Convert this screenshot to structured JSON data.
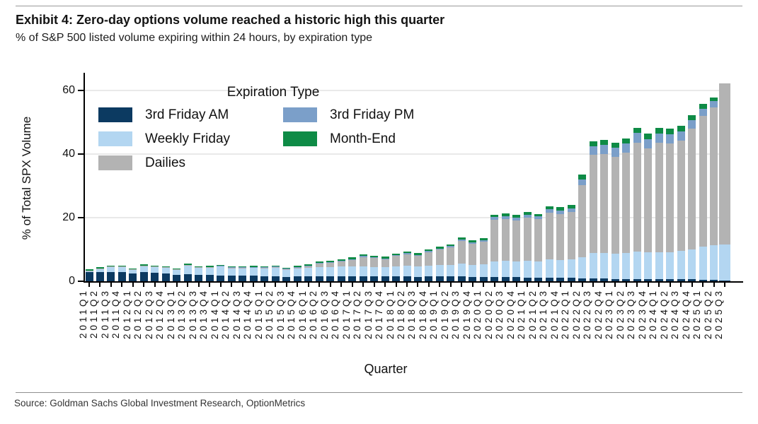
{
  "page": {
    "title": "Exhibit 4: Zero-day options volume reached a historic high this quarter",
    "subtitle": "% of S&P 500 listed volume expiring within 24 hours, by expiration type",
    "source": "Source: Goldman Sachs Global Investment Research, OptionMetrics"
  },
  "chart_data": {
    "type": "bar",
    "stacked": true,
    "title": "Exhibit 4: Zero-day options volume reached a historic high this quarter",
    "subtitle": "% of S&P 500 listed volume expiring within 24 hours, by expiration type",
    "xlabel": "Quarter",
    "ylabel": "% of Total SPX Volume",
    "legend_title": "Expiration Type",
    "legend_position": "upper-left-inside",
    "grid": "horizontal",
    "ylim": [
      0,
      65
    ],
    "yticks": [
      0,
      20,
      40,
      60
    ],
    "categories": [
      "2011Q1",
      "2011Q2",
      "2011Q3",
      "2011Q4",
      "2012Q1",
      "2012Q2",
      "2012Q3",
      "2012Q4",
      "2013Q1",
      "2013Q2",
      "2013Q3",
      "2013Q4",
      "2014Q1",
      "2014Q2",
      "2014Q3",
      "2014Q4",
      "2015Q1",
      "2015Q2",
      "2015Q3",
      "2015Q4",
      "2016Q1",
      "2016Q2",
      "2016Q3",
      "2016Q4",
      "2017Q1",
      "2017Q2",
      "2017Q3",
      "2017Q4",
      "2018Q1",
      "2018Q2",
      "2018Q3",
      "2018Q4",
      "2019Q1",
      "2019Q2",
      "2019Q3",
      "2019Q4",
      "2020Q1",
      "2020Q2",
      "2020Q3",
      "2020Q4",
      "2021Q1",
      "2021Q2",
      "2021Q3",
      "2021Q4",
      "2022Q1",
      "2022Q2",
      "2022Q3",
      "2022Q4",
      "2023Q1",
      "2023Q2",
      "2023Q3",
      "2023Q4",
      "2024Q1",
      "2024Q2",
      "2024Q3",
      "2024Q4",
      "2025Q1",
      "2025Q2",
      "2025Q3"
    ],
    "series": [
      {
        "name": "3rd Friday AM",
        "color": "#0c3a61",
        "values": [
          2.8,
          3.0,
          3.0,
          2.9,
          2.4,
          2.8,
          2.6,
          2.5,
          2.0,
          2.2,
          1.9,
          1.9,
          1.8,
          1.7,
          1.7,
          1.7,
          1.6,
          1.6,
          1.4,
          1.5,
          1.6,
          1.6,
          1.6,
          1.6,
          1.6,
          1.6,
          1.5,
          1.5,
          1.5,
          1.5,
          1.4,
          1.5,
          1.5,
          1.5,
          1.5,
          1.4,
          1.4,
          1.3,
          1.3,
          1.3,
          1.2,
          1.2,
          1.2,
          1.2,
          1.2,
          1.0,
          0.8,
          0.8,
          0.7,
          0.7,
          0.7,
          0.7,
          0.6,
          0.6,
          0.6,
          0.6,
          0.5,
          0.5,
          0.3
        ]
      },
      {
        "name": "Weekly Friday",
        "color": "#b3d6f1",
        "values": [
          0.5,
          1.0,
          1.5,
          1.6,
          1.2,
          2.0,
          1.9,
          1.8,
          1.6,
          2.8,
          2.3,
          2.4,
          2.8,
          2.4,
          2.4,
          2.5,
          2.5,
          2.7,
          2.2,
          2.5,
          2.6,
          2.9,
          2.9,
          3.0,
          3.0,
          3.1,
          3.0,
          2.9,
          3.2,
          3.3,
          3.2,
          3.5,
          3.6,
          3.7,
          4.0,
          3.8,
          4.0,
          5.0,
          5.1,
          5.0,
          5.2,
          5.1,
          5.6,
          5.5,
          5.7,
          6.5,
          8.0,
          8.2,
          8.0,
          8.2,
          8.6,
          8.4,
          8.6,
          8.6,
          9.0,
          9.5,
          10.3,
          10.8,
          11.2
        ]
      },
      {
        "name": "Dailies",
        "color": "#b3b3b3",
        "values": [
          0.1,
          0.1,
          0.1,
          0.1,
          0.1,
          0.1,
          0.1,
          0.1,
          0.1,
          0.1,
          0.2,
          0.2,
          0.2,
          0.2,
          0.2,
          0.2,
          0.2,
          0.3,
          0.2,
          0.4,
          0.5,
          1.0,
          1.2,
          1.7,
          2.2,
          2.9,
          2.8,
          2.5,
          3.2,
          3.6,
          3.4,
          4.1,
          4.8,
          5.4,
          7.2,
          6.6,
          7.1,
          13.0,
          13.2,
          12.8,
          13.6,
          13.2,
          14.7,
          14.5,
          14.9,
          22.7,
          30.9,
          31.1,
          30.5,
          31.5,
          34.3,
          32.7,
          34.3,
          34.1,
          34.6,
          37.8,
          41.2,
          43.3,
          50.7
        ]
      },
      {
        "name": "3rd Friday PM",
        "color": "#7b9fc9",
        "values": [
          0,
          0,
          0,
          0,
          0,
          0,
          0,
          0,
          0,
          0,
          0,
          0,
          0.1,
          0.1,
          0.1,
          0.1,
          0.1,
          0.1,
          0.1,
          0.1,
          0.1,
          0.2,
          0.2,
          0.2,
          0.2,
          0.3,
          0.3,
          0.3,
          0.3,
          0.4,
          0.3,
          0.4,
          0.4,
          0.5,
          0.5,
          0.5,
          0.5,
          0.9,
          0.9,
          0.9,
          0.9,
          0.9,
          1.1,
          1.1,
          1.1,
          1.8,
          2.8,
          2.9,
          2.8,
          2.9,
          3.0,
          2.9,
          3.0,
          2.9,
          2.9,
          2.8,
          2.2,
          2.0,
          0
        ]
      },
      {
        "name": "Month-End",
        "color": "#0e8b46",
        "values": [
          0.3,
          0.4,
          0.3,
          0.3,
          0.25,
          0.4,
          0.3,
          0.3,
          0.3,
          0.4,
          0.3,
          0.3,
          0.3,
          0.3,
          0.3,
          0.3,
          0.3,
          0.3,
          0.3,
          0.3,
          0.5,
          0.5,
          0.5,
          0.5,
          0.5,
          0.5,
          0.5,
          0.5,
          0.5,
          0.5,
          0.5,
          0.5,
          0.5,
          0.5,
          0.6,
          0.6,
          0.6,
          0.8,
          0.9,
          0.8,
          0.9,
          0.8,
          1.0,
          1.0,
          1.1,
          1.5,
          1.5,
          1.5,
          1.5,
          1.7,
          1.7,
          1.7,
          1.7,
          1.7,
          1.7,
          1.6,
          1.6,
          1.2,
          0
        ]
      }
    ],
    "legend_columns": [
      [
        "3rd Friday AM",
        "Weekly Friday",
        "Dailies"
      ],
      [
        "3rd Friday PM",
        "Month-End"
      ]
    ]
  }
}
